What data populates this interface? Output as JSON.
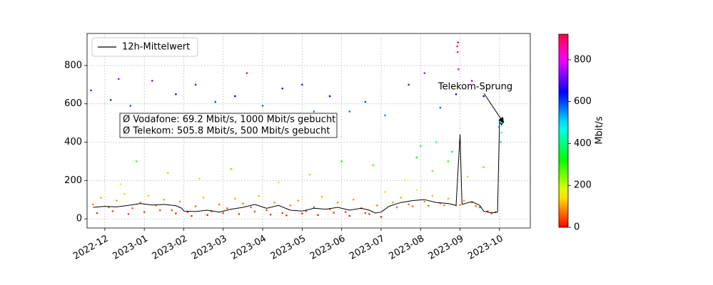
{
  "chart_data": {
    "type": "scatter",
    "xticks": [
      {
        "value": 0,
        "label": "2022-12"
      },
      {
        "value": 1,
        "label": "2023-01"
      },
      {
        "value": 2,
        "label": "2023-02"
      },
      {
        "value": 3,
        "label": "2023-03"
      },
      {
        "value": 4,
        "label": "2023-04"
      },
      {
        "value": 5,
        "label": "2023-05"
      },
      {
        "value": 6,
        "label": "2023-06"
      },
      {
        "value": 7,
        "label": "2023-07"
      },
      {
        "value": 8,
        "label": "2023-08"
      },
      {
        "value": 9,
        "label": "2023-09"
      },
      {
        "value": 10,
        "label": "2023-10"
      }
    ],
    "xlim": [
      -0.45,
      10.78
    ],
    "ylim": [
      -48,
      967
    ],
    "yticks": [
      0,
      200,
      400,
      600,
      800
    ],
    "grid": true,
    "legend": "upper left",
    "colormap": "hsv",
    "colorbar": {
      "label": "Mbit/s",
      "lim": [
        0,
        922
      ],
      "ticks": [
        0,
        200,
        400,
        600,
        800
      ]
    },
    "series": [
      {
        "type": "scatter",
        "x": [
          -0.3,
          -0.1,
          0.1,
          0.3,
          0.5,
          0.7,
          0.9,
          1.1,
          1.3,
          1.5,
          1.7,
          1.9,
          2.1,
          2.3,
          2.5,
          2.7,
          2.9,
          3.1,
          3.3,
          3.5,
          3.7,
          3.9,
          4.1,
          4.3,
          4.5,
          4.7,
          4.9,
          5.1,
          5.3,
          5.5,
          5.7,
          5.9,
          6.1,
          6.3,
          6.5,
          6.7,
          6.9,
          7.1,
          7.3,
          7.5,
          7.7,
          7.9,
          8.1,
          8.3,
          8.5,
          8.7,
          8.9,
          9.1,
          9.3,
          9.5,
          9.7,
          9.9,
          -0.2,
          0.2,
          0.6,
          1.0,
          1.4,
          1.8,
          2.2,
          2.6,
          3.0,
          3.4,
          3.8,
          4.2,
          4.6,
          5.0,
          5.4,
          5.8,
          6.2,
          6.6,
          7.0,
          7.4,
          7.8,
          8.2,
          8.6,
          9.0,
          9.4,
          9.8,
          0.4,
          0.8,
          1.6,
          2.4,
          3.2,
          4.4,
          5.2,
          6.0,
          6.8,
          7.6,
          7.9,
          8.0,
          8.3,
          8.4,
          8.7,
          8.8,
          9.2,
          9.6,
          -0.35,
          0.15,
          0.35,
          0.65,
          1.2,
          1.8,
          2.3,
          2.8,
          3.3,
          3.6,
          4.0,
          4.5,
          5.0,
          5.3,
          5.7,
          6.2,
          6.6,
          7.1,
          7.7,
          8.1,
          8.5,
          8.9,
          9.3,
          9.6,
          8.93,
          8.94,
          8.95,
          8.96,
          9.98,
          10.0,
          10.02,
          10.04,
          10.06,
          10.08,
          10.1,
          10.05,
          10.03,
          10.07
        ],
        "values": [
          75,
          110,
          60,
          95,
          130,
          55,
          85,
          120,
          70,
          100,
          45,
          90,
          35,
          65,
          110,
          40,
          75,
          55,
          105,
          80,
          60,
          120,
          45,
          85,
          30,
          70,
          95,
          40,
          60,
          115,
          50,
          85,
          35,
          100,
          55,
          25,
          70,
          140,
          85,
          110,
          75,
          150,
          90,
          120,
          80,
          105,
          70,
          95,
          85,
          60,
          40,
          35,
          30,
          40,
          25,
          35,
          45,
          28,
          15,
          20,
          30,
          25,
          38,
          22,
          18,
          27,
          20,
          32,
          15,
          30,
          10,
          60,
          65,
          68,
          70,
          72,
          66,
          30,
          180,
          300,
          240,
          210,
          260,
          190,
          230,
          300,
          280,
          200,
          320,
          380,
          250,
          400,
          300,
          350,
          220,
          270,
          670,
          620,
          730,
          590,
          720,
          650,
          700,
          610,
          640,
          760,
          590,
          680,
          700,
          560,
          640,
          560,
          610,
          540,
          700,
          760,
          580,
          650,
          720,
          640,
          900,
          870,
          920,
          780,
          480,
          510,
          520,
          500,
          495,
          515,
          505,
          450,
          400,
          525
        ]
      },
      {
        "type": "line",
        "name": "12h-Mittelwert",
        "color": "#000000",
        "x": [
          -0.3,
          0,
          0.3,
          0.6,
          0.9,
          1.2,
          1.5,
          1.8,
          1.95,
          2.0,
          2.3,
          2.6,
          2.9,
          3.2,
          3.5,
          3.8,
          4.1,
          4.4,
          4.7,
          5.0,
          5.3,
          5.6,
          5.9,
          6.2,
          6.5,
          6.7,
          6.85,
          7.0,
          7.2,
          7.5,
          7.8,
          8.1,
          8.4,
          8.7,
          8.9,
          9.0,
          9.05,
          9.3,
          9.5,
          9.6,
          9.8,
          9.95,
          10.0,
          10.05,
          10.1
        ],
        "values": [
          60,
          65,
          62,
          70,
          80,
          72,
          75,
          68,
          55,
          40,
          38,
          45,
          35,
          50,
          60,
          75,
          55,
          70,
          45,
          40,
          55,
          50,
          60,
          45,
          55,
          45,
          30,
          35,
          65,
          85,
          95,
          100,
          85,
          80,
          70,
          440,
          75,
          90,
          70,
          40,
          30,
          35,
          505,
          490,
          510
        ]
      }
    ],
    "annotations": [
      {
        "lines": [
          "Ø Vodafone: 69.2 Mbit/s, 1000 Mbit/s gebucht",
          "Ø Telekom: 505.8 Mbit/s, 500 Mbit/s gebucht"
        ]
      },
      {
        "text": "Telekom-Sprung",
        "xy": [
          10.1,
          502
        ]
      }
    ]
  }
}
